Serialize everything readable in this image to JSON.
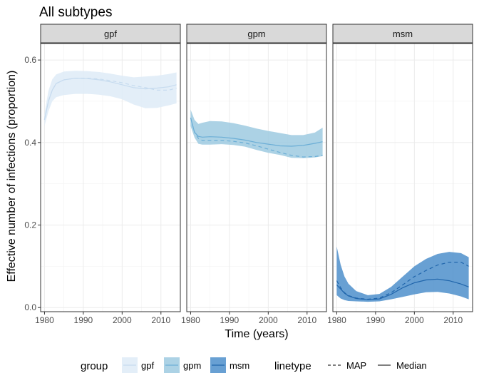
{
  "chart_data": {
    "type": "area",
    "title": "All subtypes",
    "xlabel": "Time (years)",
    "ylabel": "Effective number of infections (proportion)",
    "xlim": [
      1979,
      2015
    ],
    "ylim": [
      -0.01,
      0.64
    ],
    "x_ticks": [
      1980,
      1990,
      2000,
      2010
    ],
    "y_ticks": [
      0.0,
      0.2,
      0.4,
      0.6
    ],
    "y_tick_labels": [
      "0.0",
      "0.2",
      "0.4",
      "0.6"
    ],
    "x_tick_labels": [
      "1980",
      "1990",
      "2000",
      "2010"
    ],
    "grid": true,
    "legend_position": "bottom",
    "panels": [
      {
        "name": "gpf",
        "fill": "#deebf7",
        "line_color": "#c6dbef",
        "x": [
          1980,
          1981,
          1982,
          1983,
          1985,
          1988,
          1991,
          1994,
          1997,
          2000,
          2003,
          2006,
          2009,
          2012,
          2014
        ],
        "lower": [
          0.44,
          0.475,
          0.5,
          0.51,
          0.515,
          0.518,
          0.518,
          0.516,
          0.512,
          0.505,
          0.492,
          0.483,
          0.484,
          0.49,
          0.495
        ],
        "upper": [
          0.47,
          0.525,
          0.553,
          0.565,
          0.572,
          0.574,
          0.573,
          0.571,
          0.567,
          0.562,
          0.558,
          0.56,
          0.562,
          0.566,
          0.57
        ],
        "median": [
          0.455,
          0.5,
          0.527,
          0.543,
          0.552,
          0.556,
          0.555,
          0.552,
          0.547,
          0.54,
          0.533,
          0.53,
          0.532,
          0.535,
          0.54
        ],
        "map": [
          0.455,
          0.5,
          0.527,
          0.543,
          0.552,
          0.556,
          0.556,
          0.554,
          0.55,
          0.545,
          0.538,
          0.533,
          0.527,
          0.527,
          0.532
        ]
      },
      {
        "name": "gpm",
        "fill": "#9ecae1",
        "line_color": "#6baed6",
        "x": [
          1980,
          1981,
          1982,
          1983,
          1985,
          1988,
          1991,
          1994,
          1997,
          2000,
          2003,
          2006,
          2009,
          2012,
          2014
        ],
        "lower": [
          0.44,
          0.412,
          0.397,
          0.395,
          0.395,
          0.396,
          0.394,
          0.39,
          0.382,
          0.375,
          0.37,
          0.363,
          0.362,
          0.364,
          0.367
        ],
        "upper": [
          0.48,
          0.455,
          0.445,
          0.448,
          0.452,
          0.451,
          0.447,
          0.441,
          0.434,
          0.428,
          0.423,
          0.418,
          0.418,
          0.424,
          0.436
        ],
        "median": [
          0.46,
          0.425,
          0.415,
          0.413,
          0.414,
          0.413,
          0.41,
          0.406,
          0.4,
          0.396,
          0.392,
          0.391,
          0.393,
          0.398,
          0.402
        ],
        "map": [
          0.46,
          0.425,
          0.41,
          0.405,
          0.405,
          0.405,
          0.403,
          0.399,
          0.392,
          0.384,
          0.376,
          0.369,
          0.365,
          0.366,
          0.369
        ]
      },
      {
        "name": "msm",
        "fill": "#4d8fcb",
        "line_color": "#2166ac",
        "x": [
          1980,
          1981,
          1982,
          1983,
          1985,
          1988,
          1991,
          1994,
          1997,
          2000,
          2003,
          2006,
          2009,
          2012,
          2014
        ],
        "lower": [
          0.03,
          0.022,
          0.018,
          0.016,
          0.015,
          0.014,
          0.015,
          0.02,
          0.026,
          0.032,
          0.037,
          0.038,
          0.034,
          0.027,
          0.02
        ],
        "upper": [
          0.148,
          0.104,
          0.075,
          0.058,
          0.04,
          0.03,
          0.033,
          0.05,
          0.075,
          0.1,
          0.118,
          0.13,
          0.135,
          0.132,
          0.122
        ],
        "median": [
          0.055,
          0.045,
          0.035,
          0.028,
          0.022,
          0.019,
          0.021,
          0.032,
          0.048,
          0.06,
          0.067,
          0.069,
          0.065,
          0.057,
          0.05
        ],
        "map": [
          0.065,
          0.048,
          0.036,
          0.029,
          0.023,
          0.02,
          0.023,
          0.036,
          0.055,
          0.075,
          0.09,
          0.103,
          0.11,
          0.11,
          0.1
        ]
      }
    ],
    "legend": {
      "group_title": "group",
      "group_items": [
        {
          "label": "gpf",
          "fill": "#deebf7",
          "line_color": "#c6dbef"
        },
        {
          "label": "gpm",
          "fill": "#9ecae1",
          "line_color": "#6baed6"
        },
        {
          "label": "msm",
          "fill": "#4d8fcb",
          "line_color": "#2166ac"
        }
      ],
      "linetype_title": "linetype",
      "linetype_items": [
        {
          "label": "MAP",
          "dash": "dashed"
        },
        {
          "label": "Median",
          "dash": "solid"
        }
      ]
    }
  }
}
